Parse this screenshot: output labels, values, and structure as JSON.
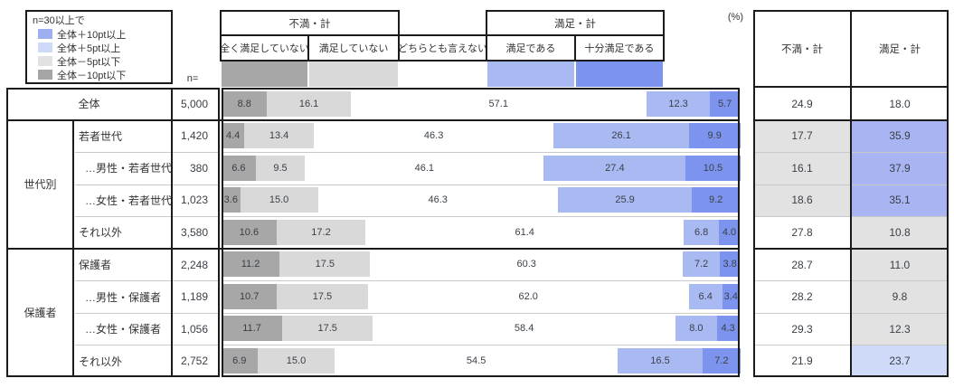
{
  "unit_label": "(%)",
  "n_label": "n=",
  "legend": {
    "title": "n=30以上で",
    "items": [
      {
        "label": "全体＋10pt以上",
        "key": "plus10",
        "color": "#9fadf1"
      },
      {
        "label": "全体＋5pt以上",
        "key": "plus5",
        "color": "#cfdaf8"
      },
      {
        "label": "全体－5pt以下",
        "key": "minus5",
        "color": "#e2e2e2"
      },
      {
        "label": "全体－10pt以下",
        "key": "minus10",
        "color": "#a5a5a5"
      }
    ]
  },
  "chart_data": {
    "type": "bar",
    "subtype": "horizontal-stacked-100pct",
    "unit": "%",
    "axis_range": [
      0,
      100
    ],
    "group_headers": [
      {
        "label": "不満・計"
      },
      {
        "label": "満足・計"
      }
    ],
    "categories": [
      "全く満足していない",
      "満足していない",
      "どちらとも言えない",
      "満足である",
      "十分満足である"
    ],
    "category_colors": [
      "#a7a7a7",
      "#d9d9d9",
      "#ffffff",
      "#a9baf3",
      "#7d94ee"
    ],
    "summary_columns": [
      "不満・計",
      "満足・計"
    ],
    "summary_cell_colors": {
      "plus10": "#a9b4f3",
      "plus5": "#cfdaf8",
      "minus5": "#e2e2e2",
      "minus10": "#a5a5a5",
      "none": "#ffffff"
    },
    "row_groups": [
      {
        "label": "",
        "rows": [
          {
            "label": "全体",
            "merged": true,
            "indent": false,
            "n": "5,000",
            "values": [
              8.8,
              16.1,
              57.1,
              12.3,
              5.7
            ],
            "summary": [
              {
                "value": "24.9",
                "diff": "none"
              },
              {
                "value": "18.0",
                "diff": "none"
              }
            ]
          }
        ]
      },
      {
        "label": "世代別",
        "rows": [
          {
            "label": "若者世代",
            "merged": false,
            "indent": false,
            "n": "1,420",
            "values": [
              4.4,
              13.4,
              46.3,
              26.1,
              9.9
            ],
            "summary": [
              {
                "value": "17.7",
                "diff": "minus5"
              },
              {
                "value": "35.9",
                "diff": "plus10"
              }
            ]
          },
          {
            "label": "…男性・若者世代",
            "merged": false,
            "indent": true,
            "n": "380",
            "values": [
              6.6,
              9.5,
              46.1,
              27.4,
              10.5
            ],
            "summary": [
              {
                "value": "16.1",
                "diff": "minus5"
              },
              {
                "value": "37.9",
                "diff": "plus10"
              }
            ]
          },
          {
            "label": "…女性・若者世代",
            "merged": false,
            "indent": true,
            "n": "1,023",
            "values": [
              3.6,
              15.0,
              46.3,
              25.9,
              9.2
            ],
            "summary": [
              {
                "value": "18.6",
                "diff": "minus5"
              },
              {
                "value": "35.1",
                "diff": "plus10"
              }
            ]
          },
          {
            "label": "それ以外",
            "merged": false,
            "indent": false,
            "n": "3,580",
            "values": [
              10.6,
              17.2,
              61.4,
              6.8,
              4.0
            ],
            "summary": [
              {
                "value": "27.8",
                "diff": "none"
              },
              {
                "value": "10.8",
                "diff": "minus5"
              }
            ]
          }
        ]
      },
      {
        "label": "保護者",
        "rows": [
          {
            "label": "保護者",
            "merged": false,
            "indent": false,
            "n": "2,248",
            "values": [
              11.2,
              17.5,
              60.3,
              7.2,
              3.8
            ],
            "summary": [
              {
                "value": "28.7",
                "diff": "none"
              },
              {
                "value": "11.0",
                "diff": "minus5"
              }
            ]
          },
          {
            "label": "…男性・保護者",
            "merged": false,
            "indent": true,
            "n": "1,189",
            "values": [
              10.7,
              17.5,
              62.0,
              6.4,
              3.4
            ],
            "summary": [
              {
                "value": "28.2",
                "diff": "none"
              },
              {
                "value": "9.8",
                "diff": "minus5"
              }
            ]
          },
          {
            "label": "…女性・保護者",
            "merged": false,
            "indent": true,
            "n": "1,056",
            "values": [
              11.7,
              17.5,
              58.4,
              8.0,
              4.3
            ],
            "summary": [
              {
                "value": "29.3",
                "diff": "none"
              },
              {
                "value": "12.3",
                "diff": "minus5"
              }
            ]
          },
          {
            "label": "それ以外",
            "merged": false,
            "indent": false,
            "n": "2,752",
            "values": [
              6.9,
              15.0,
              54.5,
              16.5,
              7.2
            ],
            "summary": [
              {
                "value": "21.9",
                "diff": "none"
              },
              {
                "value": "23.7",
                "diff": "plus5"
              }
            ]
          }
        ]
      }
    ]
  }
}
